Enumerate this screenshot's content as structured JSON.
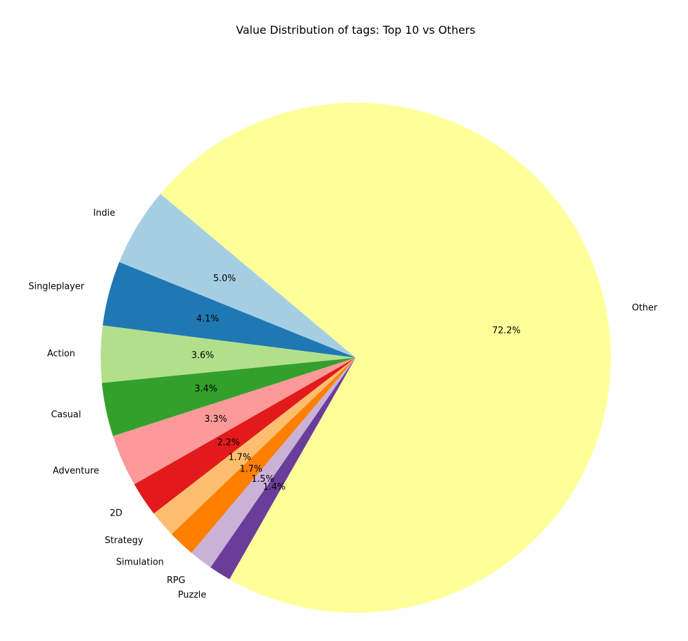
{
  "chart_data": {
    "type": "pie",
    "title": "Value Distribution of tags: Top 10 vs Others",
    "slices": [
      {
        "label": "Indie",
        "value": 5.0,
        "pct_label": "5.0%",
        "color": "#a6cee3"
      },
      {
        "label": "Singleplayer",
        "value": 4.1,
        "pct_label": "4.1%",
        "color": "#1f78b4"
      },
      {
        "label": "Action",
        "value": 3.6,
        "pct_label": "3.6%",
        "color": "#b2df8a"
      },
      {
        "label": "Casual",
        "value": 3.4,
        "pct_label": "3.4%",
        "color": "#33a02c"
      },
      {
        "label": "Adventure",
        "value": 3.3,
        "pct_label": "3.3%",
        "color": "#fb9a99"
      },
      {
        "label": "2D",
        "value": 2.2,
        "pct_label": "2.2%",
        "color": "#e31a1c"
      },
      {
        "label": "Strategy",
        "value": 1.7,
        "pct_label": "1.7%",
        "color": "#fdbf6f"
      },
      {
        "label": "Simulation",
        "value": 1.7,
        "pct_label": "1.7%",
        "color": "#ff7f00"
      },
      {
        "label": "RPG",
        "value": 1.5,
        "pct_label": "1.5%",
        "color": "#cab2d6"
      },
      {
        "label": "Puzzle",
        "value": 1.4,
        "pct_label": "1.4%",
        "color": "#6a3d9a"
      },
      {
        "label": "Other",
        "value": 72.2,
        "pct_label": "72.2%",
        "color": "#ffff99"
      }
    ],
    "start_angle_deg": 140,
    "direction": "counterclockwise",
    "legend": "none"
  }
}
